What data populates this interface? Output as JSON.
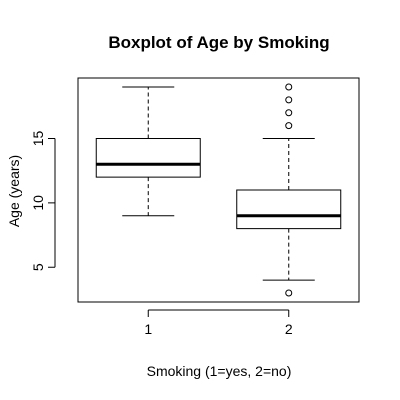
{
  "chart_data": {
    "type": "boxplot",
    "title": "Boxplot of Age by Smoking",
    "xlabel": "Smoking (1=yes, 2=no)",
    "ylabel": "Age (years)",
    "categories": [
      "1",
      "2"
    ],
    "y_ticks": [
      5,
      10,
      15
    ],
    "ylim": [
      2.3,
      19.7
    ],
    "grid": false,
    "legend": "none",
    "boxes": [
      {
        "category": "1",
        "whisker_low": 9,
        "q1": 12,
        "median": 13,
        "q3": 15,
        "whisker_high": 19,
        "outliers": []
      },
      {
        "category": "2",
        "whisker_low": 4,
        "q1": 8,
        "median": 9,
        "q3": 11,
        "whisker_high": 15,
        "outliers": [
          3,
          16,
          17,
          18,
          19
        ]
      }
    ]
  }
}
